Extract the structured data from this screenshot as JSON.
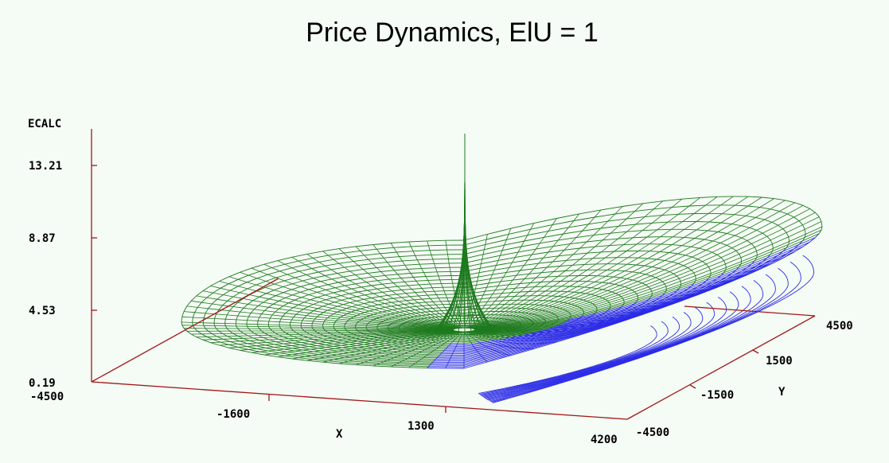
{
  "chart_data": {
    "type": "surface",
    "title": "Price Dynamics, ElU = 1",
    "zlabel": "ECALC",
    "xlabel": "X",
    "ylabel": "Y",
    "z_ticks": [
      "13.21",
      "8.87",
      "4.53",
      "0.19"
    ],
    "x_ticks": [
      "-4500",
      "-1600",
      "1300",
      "4200"
    ],
    "y_ticks": [
      "-4500",
      "-1500",
      "1500",
      "4500"
    ],
    "xlim": [
      -4500,
      4200
    ],
    "ylim": [
      -4500,
      4500
    ],
    "zlim": [
      0.19,
      13.21
    ],
    "colors": {
      "upper_surface": "#1e7a1e",
      "lower_surface": "#2a2ae6",
      "axes": "#a01818",
      "background": "#f5fbf5"
    }
  }
}
